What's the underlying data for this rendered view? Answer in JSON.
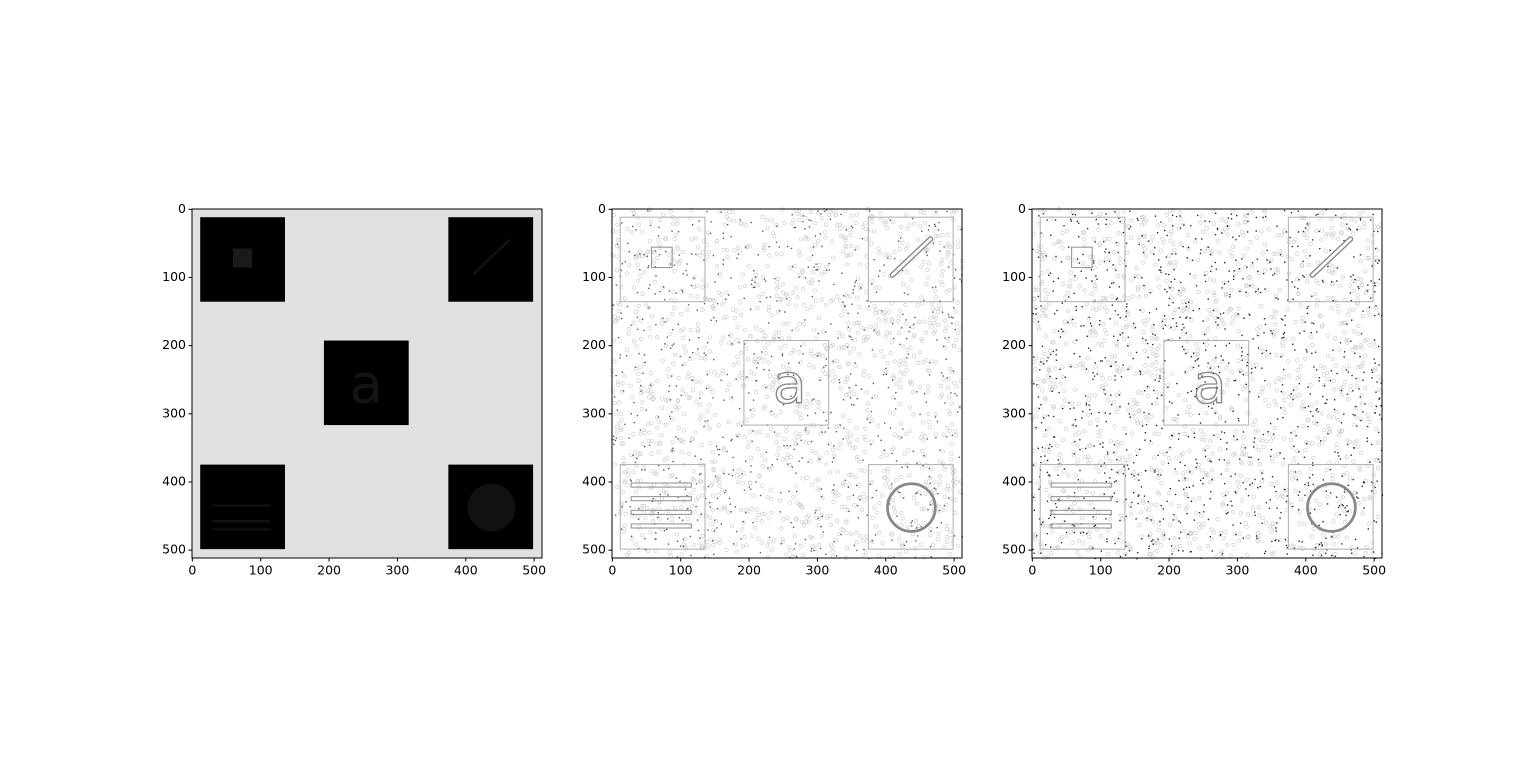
{
  "chart_data": [
    {
      "type": "image",
      "xlim": [
        -0.5,
        511.5
      ],
      "ylim": [
        511.5,
        -0.5
      ],
      "xticks": [
        0,
        100,
        200,
        300,
        400,
        500
      ],
      "yticks": [
        0,
        100,
        200,
        300,
        400,
        500
      ]
    },
    {
      "type": "image",
      "xlim": [
        -0.5,
        511.5
      ],
      "ylim": [
        511.5,
        -0.5
      ],
      "xticks": [
        0,
        100,
        200,
        300,
        400,
        500
      ],
      "yticks": [
        0,
        100,
        200,
        300,
        400,
        500
      ]
    },
    {
      "type": "image",
      "xlim": [
        -0.5,
        511.5
      ],
      "ylim": [
        511.5,
        -0.5
      ],
      "xticks": [
        0,
        100,
        200,
        300,
        400,
        500
      ],
      "yticks": [
        0,
        100,
        200,
        300,
        400,
        500
      ]
    }
  ]
}
